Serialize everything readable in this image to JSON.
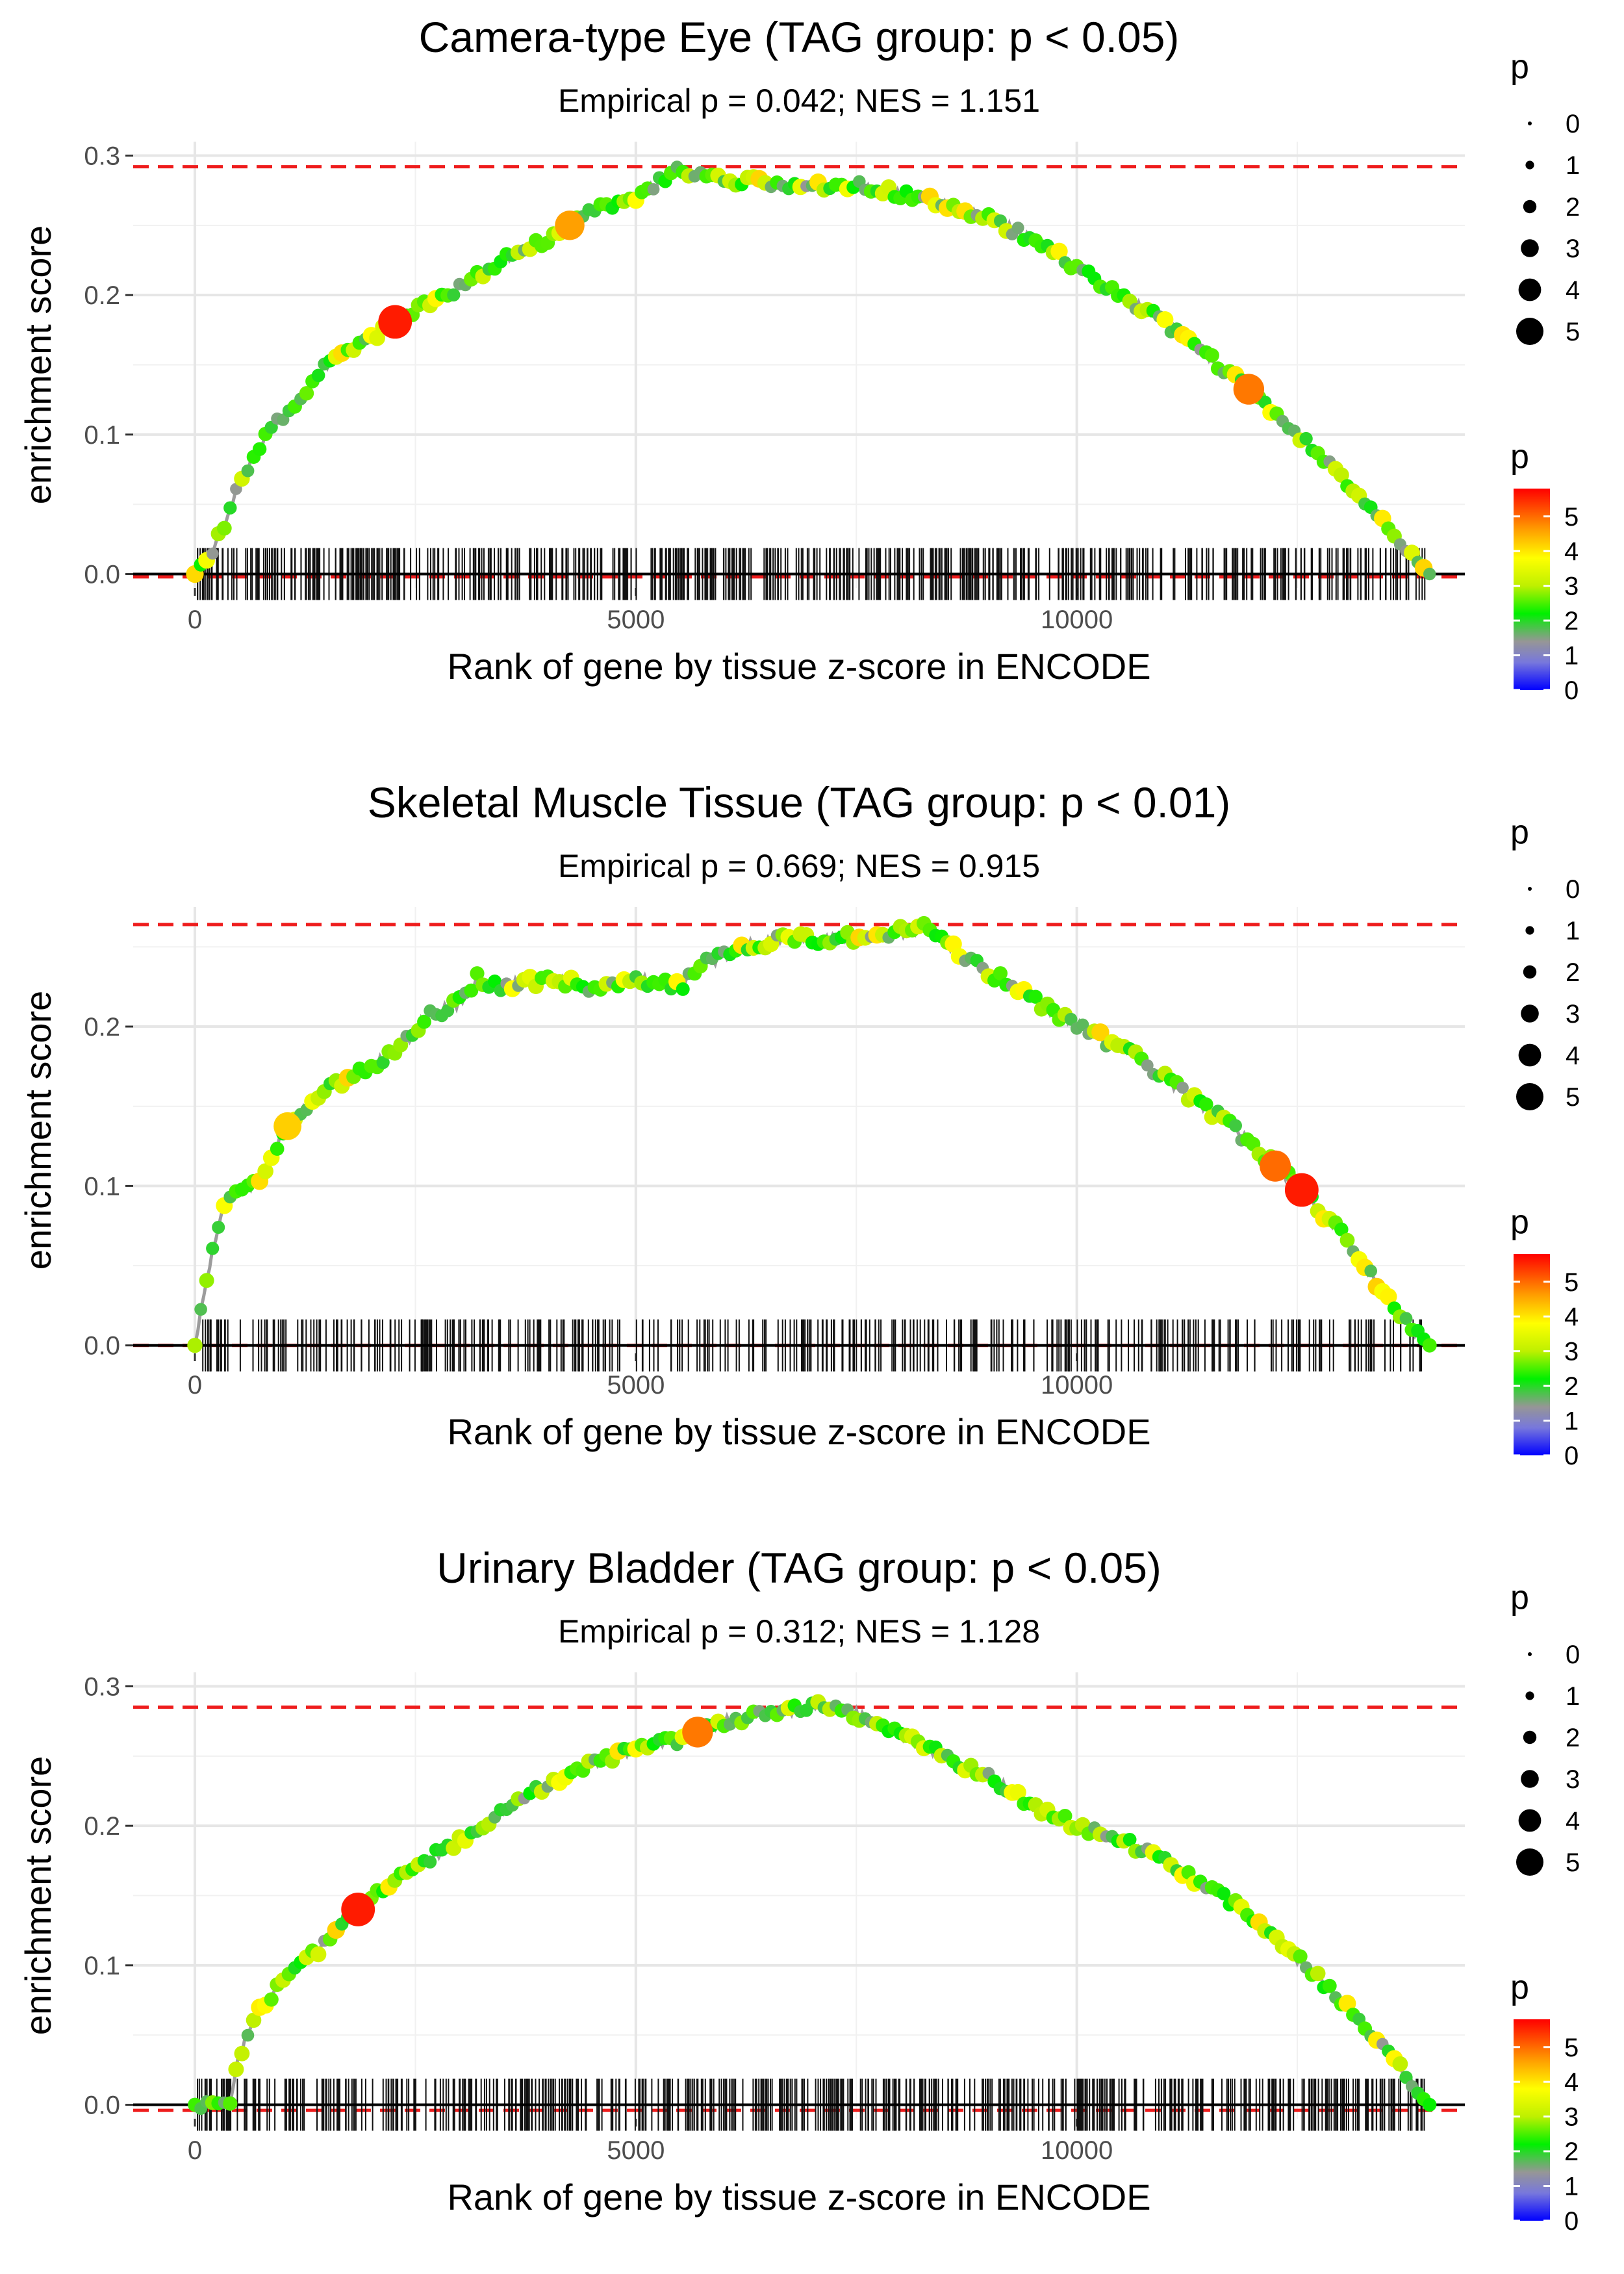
{
  "figure": {
    "xlabel": "Rank of gene by tissue z-score in ENCODE",
    "ylabel": "enrichment score",
    "legend_title": "p",
    "size_legend_values": [
      "0",
      "1",
      "2",
      "3",
      "4",
      "5"
    ],
    "colorbar_labels": [
      "0",
      "1",
      "2",
      "3",
      "4",
      "5"
    ],
    "colors": {
      "red_dash": "#ee1c1c",
      "curve": "#9c9c9c",
      "grid": "#e6e6e6",
      "ticks": "#111111"
    }
  },
  "chart_data": [
    {
      "type": "line",
      "title": "Camera-type Eye (TAG group: p < 0.05)",
      "subtitle": "Empirical p = 0.042; NES = 1.151",
      "xlabel": "Rank of gene by tissue z-score in ENCODE",
      "ylabel": "enrichment score",
      "xlim": [
        -700,
        14400
      ],
      "ylim": [
        -0.01,
        0.31
      ],
      "xticks": [
        0,
        5000,
        10000
      ],
      "xtick_labels": [
        "0",
        "5000",
        "10000"
      ],
      "yticks": [
        0.0,
        0.1,
        0.2,
        0.3
      ],
      "ytick_labels": [
        "0.0",
        "0.1",
        "0.2",
        "0.3"
      ],
      "max_line": 0.292,
      "min_line": -0.002,
      "max_rank": 14000,
      "seed": 11,
      "n_hits": 560,
      "curve": [
        [
          0,
          0.0
        ],
        [
          150,
          0.01
        ],
        [
          300,
          0.03
        ],
        [
          500,
          0.065
        ],
        [
          800,
          0.1
        ],
        [
          1100,
          0.12
        ],
        [
          1500,
          0.15
        ],
        [
          2000,
          0.17
        ],
        [
          2500,
          0.19
        ],
        [
          3000,
          0.205
        ],
        [
          3500,
          0.225
        ],
        [
          4000,
          0.24
        ],
        [
          4500,
          0.26
        ],
        [
          5000,
          0.27
        ],
        [
          5500,
          0.29
        ],
        [
          6000,
          0.283
        ],
        [
          7000,
          0.278
        ],
        [
          7500,
          0.28
        ],
        [
          8000,
          0.272
        ],
        [
          8500,
          0.265
        ],
        [
          9000,
          0.255
        ],
        [
          9500,
          0.24
        ],
        [
          10000,
          0.22
        ],
        [
          10500,
          0.2
        ],
        [
          11000,
          0.18
        ],
        [
          11500,
          0.155
        ],
        [
          12000,
          0.13
        ],
        [
          12500,
          0.1
        ],
        [
          13000,
          0.07
        ],
        [
          13500,
          0.035
        ],
        [
          13800,
          0.015
        ],
        [
          14000,
          0.0
        ]
      ],
      "highlights": [
        {
          "x": 2270,
          "p": 5.6
        },
        {
          "x": 4250,
          "p": 4.6
        },
        {
          "x": 11950,
          "p": 4.9
        }
      ]
    },
    {
      "type": "line",
      "title": "Skeletal Muscle Tissue (TAG group: p < 0.01)",
      "subtitle": "Empirical p = 0.669; NES = 0.915",
      "xlabel": "Rank of gene by tissue z-score in ENCODE",
      "ylabel": "enrichment score",
      "xlim": [
        -700,
        14400
      ],
      "ylim": [
        -0.005,
        0.275
      ],
      "xticks": [
        0,
        5000,
        10000
      ],
      "xtick_labels": [
        "0",
        "5000",
        "10000"
      ],
      "yticks": [
        0.0,
        0.1,
        0.2
      ],
      "ytick_labels": [
        "0.0",
        "0.1",
        "0.2"
      ],
      "max_line": 0.264,
      "min_line": 0.0,
      "max_rank": 14000,
      "seed": 23,
      "n_hits": 360,
      "curve": [
        [
          0,
          0.0
        ],
        [
          100,
          0.03
        ],
        [
          200,
          0.06
        ],
        [
          350,
          0.09
        ],
        [
          500,
          0.1
        ],
        [
          700,
          0.1
        ],
        [
          800,
          0.11
        ],
        [
          1000,
          0.135
        ],
        [
          1500,
          0.16
        ],
        [
          2000,
          0.175
        ],
        [
          2300,
          0.185
        ],
        [
          2600,
          0.205
        ],
        [
          3000,
          0.215
        ],
        [
          3200,
          0.23
        ],
        [
          3500,
          0.225
        ],
        [
          4000,
          0.23
        ],
        [
          4500,
          0.225
        ],
        [
          5000,
          0.23
        ],
        [
          5500,
          0.225
        ],
        [
          5800,
          0.24
        ],
        [
          6200,
          0.25
        ],
        [
          6700,
          0.255
        ],
        [
          7200,
          0.255
        ],
        [
          7800,
          0.258
        ],
        [
          8100,
          0.26
        ],
        [
          8300,
          0.262
        ],
        [
          8800,
          0.24
        ],
        [
          9300,
          0.225
        ],
        [
          9700,
          0.21
        ],
        [
          10200,
          0.195
        ],
        [
          10700,
          0.18
        ],
        [
          11200,
          0.16
        ],
        [
          11700,
          0.14
        ],
        [
          12200,
          0.115
        ],
        [
          12600,
          0.095
        ],
        [
          13000,
          0.07
        ],
        [
          13400,
          0.04
        ],
        [
          13800,
          0.01
        ],
        [
          14000,
          0.0
        ]
      ],
      "highlights": [
        {
          "x": 1050,
          "p": 4.2
        },
        {
          "x": 12250,
          "p": 5.0
        },
        {
          "x": 12550,
          "p": 5.6
        }
      ]
    },
    {
      "type": "line",
      "title": "Urinary Bladder (TAG group: p < 0.05)",
      "subtitle": "Empirical p = 0.312; NES = 1.128",
      "xlabel": "Rank of gene by tissue z-score in ENCODE",
      "ylabel": "enrichment score",
      "xlim": [
        -700,
        14400
      ],
      "ylim": [
        -0.01,
        0.31
      ],
      "xticks": [
        0,
        5000,
        10000
      ],
      "xtick_labels": [
        "0",
        "5000",
        "10000"
      ],
      "yticks": [
        0.0,
        0.1,
        0.2,
        0.3
      ],
      "ytick_labels": [
        "0.0",
        "0.1",
        "0.2",
        "0.3"
      ],
      "max_line": 0.285,
      "min_line": -0.004,
      "max_rank": 14000,
      "seed": 37,
      "n_hits": 560,
      "curve": [
        [
          0,
          0.0
        ],
        [
          200,
          0.0
        ],
        [
          400,
          0.0
        ],
        [
          500,
          0.035
        ],
        [
          700,
          0.065
        ],
        [
          1000,
          0.09
        ],
        [
          1300,
          0.105
        ],
        [
          1700,
          0.13
        ],
        [
          2000,
          0.15
        ],
        [
          2500,
          0.17
        ],
        [
          3000,
          0.19
        ],
        [
          3500,
          0.21
        ],
        [
          4000,
          0.23
        ],
        [
          4500,
          0.245
        ],
        [
          5000,
          0.255
        ],
        [
          5500,
          0.262
        ],
        [
          6000,
          0.275
        ],
        [
          6500,
          0.28
        ],
        [
          7000,
          0.285
        ],
        [
          7200,
          0.286
        ],
        [
          7500,
          0.28
        ],
        [
          8000,
          0.265
        ],
        [
          8500,
          0.25
        ],
        [
          9000,
          0.235
        ],
        [
          9500,
          0.215
        ],
        [
          10000,
          0.2
        ],
        [
          10500,
          0.19
        ],
        [
          11000,
          0.175
        ],
        [
          11500,
          0.155
        ],
        [
          12000,
          0.135
        ],
        [
          12500,
          0.105
        ],
        [
          13000,
          0.075
        ],
        [
          13500,
          0.04
        ],
        [
          13800,
          0.015
        ],
        [
          14000,
          0.0
        ]
      ],
      "highlights": [
        {
          "x": 1850,
          "p": 5.6
        },
        {
          "x": 5700,
          "p": 4.9
        }
      ]
    }
  ]
}
